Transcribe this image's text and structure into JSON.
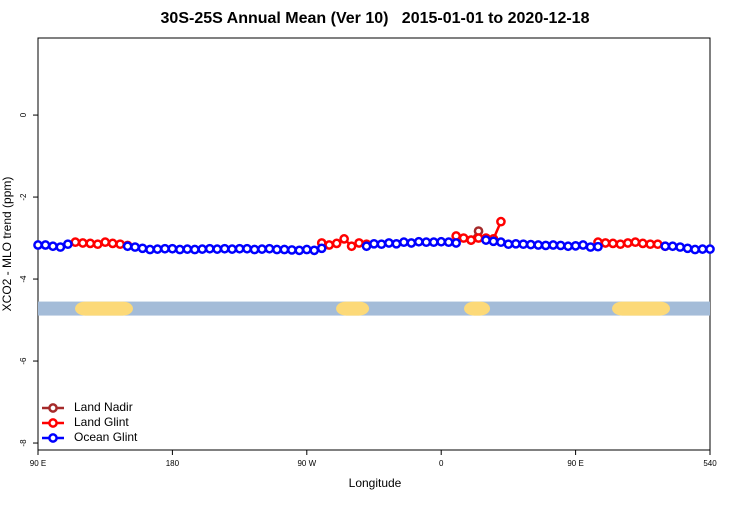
{
  "chart_data": {
    "type": "line",
    "title": "30S-25S Annual Mean (Ver 10)   2015-01-01 to 2020-12-18",
    "x_label": "Longitude",
    "y_label": "XCO2 - MLO trend (ppm)",
    "xlim": [
      90,
      540
    ],
    "ylim": [
      -8.17,
      1.88
    ],
    "xticks": [
      {
        "value": 90,
        "label": "90 E"
      },
      180,
      {
        "value": 270,
        "label": "90 W"
      },
      {
        "value": 360,
        "label": "0"
      },
      {
        "value": 450,
        "label": "90 E"
      },
      540
    ],
    "yticks": [
      0,
      -2,
      -4,
      -6,
      -8
    ],
    "x": [
      90,
      95,
      100,
      105,
      110,
      115,
      120,
      125,
      130,
      135,
      140,
      145,
      150,
      155,
      160,
      165,
      170,
      175,
      180,
      185,
      190,
      195,
      200,
      205,
      210,
      215,
      220,
      225,
      230,
      235,
      240,
      245,
      250,
      255,
      260,
      265,
      270,
      275,
      280,
      285,
      290,
      295,
      300,
      305,
      310,
      315,
      320,
      325,
      330,
      335,
      340,
      345,
      350,
      355,
      360,
      365,
      370,
      375,
      380,
      385,
      390,
      395,
      400,
      405,
      410,
      415,
      420,
      425,
      430,
      435,
      440,
      445,
      450,
      455,
      460,
      465,
      470,
      475,
      480,
      485,
      490,
      495,
      500,
      505,
      510,
      515,
      520,
      525,
      530,
      535,
      540
    ],
    "series": [
      {
        "name": "Land Nadir",
        "color": "#a52a2a",
        "values": [
          null,
          null,
          null,
          null,
          null,
          null,
          null,
          null,
          null,
          null,
          null,
          null,
          null,
          null,
          null,
          null,
          null,
          null,
          null,
          null,
          null,
          null,
          null,
          null,
          null,
          null,
          null,
          null,
          null,
          null,
          null,
          null,
          null,
          null,
          null,
          null,
          null,
          null,
          null,
          null,
          null,
          null,
          null,
          null,
          null,
          null,
          null,
          null,
          null,
          null,
          null,
          null,
          null,
          null,
          null,
          null,
          null,
          null,
          -3.05,
          -2.83,
          null,
          null,
          null,
          null,
          null,
          null,
          null,
          null,
          null,
          null,
          null,
          null,
          null,
          null,
          null,
          null,
          null,
          null,
          null,
          null,
          null,
          null,
          null,
          null,
          null,
          null,
          null,
          null,
          null,
          null,
          null
        ]
      },
      {
        "name": "Land Glint",
        "color": "#ff0000",
        "values": [
          null,
          null,
          null,
          null,
          null,
          -3.1,
          -3.12,
          -3.13,
          -3.15,
          -3.1,
          -3.13,
          -3.15,
          -3.18,
          null,
          null,
          null,
          null,
          null,
          null,
          null,
          null,
          null,
          null,
          null,
          null,
          null,
          null,
          null,
          null,
          null,
          null,
          null,
          null,
          null,
          null,
          null,
          null,
          null,
          -3.12,
          -3.17,
          -3.13,
          -3.02,
          -3.2,
          -3.12,
          -3.15,
          null,
          null,
          null,
          null,
          null,
          null,
          null,
          null,
          null,
          null,
          null,
          -2.95,
          -3.0,
          -3.05,
          -3.0,
          -3.0,
          -3.02,
          -2.6,
          null,
          null,
          null,
          null,
          null,
          null,
          null,
          null,
          null,
          null,
          null,
          null,
          -3.1,
          -3.12,
          -3.13,
          -3.15,
          -3.12,
          -3.1,
          -3.13,
          -3.15,
          -3.15,
          -3.2,
          null,
          null,
          null,
          null,
          null,
          null
        ]
      },
      {
        "name": "Ocean Glint",
        "color": "#0000ff",
        "values": [
          -3.17,
          -3.17,
          -3.2,
          -3.22,
          -3.15,
          null,
          null,
          null,
          null,
          null,
          null,
          null,
          -3.2,
          -3.22,
          -3.25,
          -3.28,
          -3.27,
          -3.26,
          -3.26,
          -3.28,
          -3.27,
          -3.28,
          -3.27,
          -3.26,
          -3.27,
          -3.26,
          -3.27,
          -3.26,
          -3.26,
          -3.28,
          -3.27,
          -3.26,
          -3.28,
          -3.28,
          -3.29,
          -3.3,
          -3.28,
          -3.3,
          -3.25,
          null,
          null,
          null,
          null,
          null,
          -3.2,
          -3.14,
          -3.15,
          -3.12,
          -3.14,
          -3.1,
          -3.12,
          -3.09,
          -3.1,
          -3.1,
          -3.09,
          -3.1,
          -3.12,
          null,
          null,
          null,
          -3.05,
          -3.08,
          -3.1,
          -3.15,
          -3.14,
          -3.15,
          -3.16,
          -3.17,
          -3.18,
          -3.17,
          -3.18,
          -3.2,
          -3.19,
          -3.17,
          -3.22,
          -3.21,
          null,
          null,
          null,
          null,
          null,
          null,
          null,
          null,
          -3.2,
          -3.2,
          -3.22,
          -3.25,
          -3.28,
          -3.27,
          -3.27
        ]
      }
    ],
    "surface_band": {
      "y": -4.72,
      "ocean_color": "#a4bcd8",
      "land_color": "#fcd978",
      "land": [
        [
          114.8,
          153.6
        ],
        [
          289.6,
          311.7
        ],
        [
          375.3,
          392.7
        ],
        [
          474.4,
          513.2
        ]
      ]
    },
    "legend": "bottom-left"
  }
}
